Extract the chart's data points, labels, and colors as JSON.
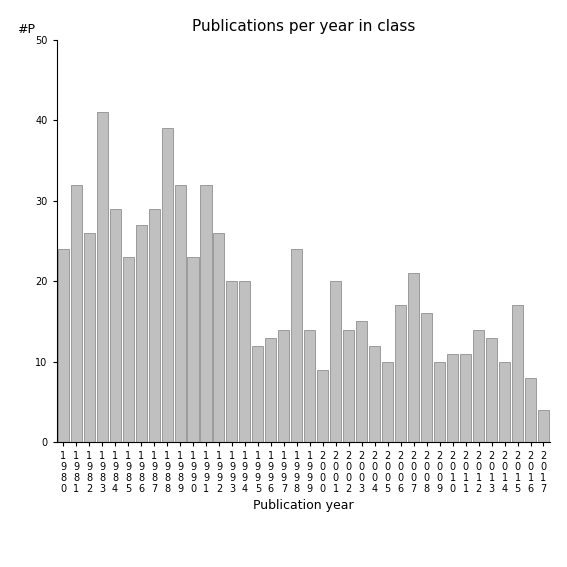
{
  "title": "Publications per year in class",
  "xlabel": "Publication year",
  "ylabel": "#P",
  "years": [
    "1980",
    "1981",
    "1982",
    "1983",
    "1984",
    "1985",
    "1986",
    "1987",
    "1988",
    "1989",
    "1990",
    "1991",
    "1992",
    "1993",
    "1994",
    "1995",
    "1996",
    "1997",
    "1998",
    "1999",
    "2000",
    "2001",
    "2002",
    "2003",
    "2004",
    "2005",
    "2006",
    "2007",
    "2008",
    "2009",
    "2010",
    "2011",
    "2012",
    "2013",
    "2014",
    "2015",
    "2016",
    "2017"
  ],
  "values": [
    24,
    32,
    26,
    41,
    29,
    23,
    27,
    29,
    39,
    32,
    23,
    32,
    26,
    20,
    20,
    12,
    13,
    14,
    24,
    14,
    9,
    20,
    14,
    15,
    12,
    10,
    17,
    21,
    16,
    10,
    11,
    11,
    14,
    13,
    10,
    17,
    8,
    4
  ],
  "ylim": [
    0,
    50
  ],
  "yticks": [
    0,
    10,
    20,
    30,
    40,
    50
  ],
  "bar_color": "#c0c0c0",
  "bar_edge_color": "#808080",
  "background_color": "#ffffff",
  "title_fontsize": 11,
  "label_fontsize": 9,
  "tick_fontsize": 7,
  "ylabel_fontsize": 9
}
